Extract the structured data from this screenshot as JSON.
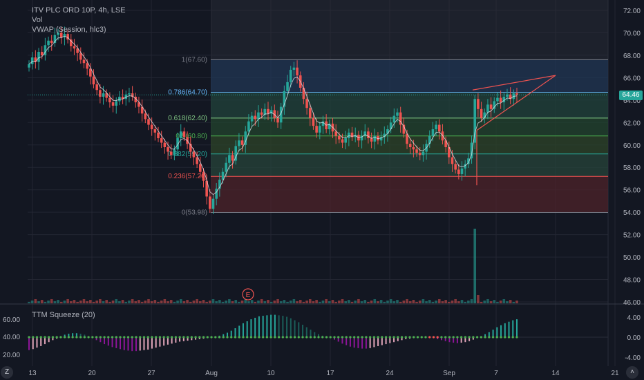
{
  "header": {
    "symbol_line": "ITV PLC ORD 10P, 4h, LSE",
    "volume_label": "Vol",
    "vwap_label": "VWAP (Session, hlc3)",
    "squeeze_label": "TTM Squeeze (20)",
    "current_price": "64.46",
    "earnings_marker": "E"
  },
  "controls": {
    "zoom_button": "Z",
    "chevron_glyph": "˄"
  },
  "colors": {
    "background": "#131722",
    "up": "#26a69a",
    "down": "#ef5350",
    "grid": "#232632",
    "axis_text": "#b2b5be",
    "squeeze_dark_magenta": "#8e1599",
    "squeeze_light_pink": "#e0a4b8",
    "squeeze_teal": "#26a69a",
    "fib_line": "#ef5350",
    "pattern_line": "#ef5350"
  },
  "chart_data": [
    {
      "type": "candlestick",
      "title": "ITV PLC ORD 10P, 4h, LSE",
      "x_ticks": [
        "13",
        "20",
        "27",
        "Aug",
        "10",
        "17",
        "24",
        "Sep",
        "7",
        "14",
        "21"
      ],
      "y_ticks": [
        "72.00",
        "70.00",
        "68.00",
        "66.00",
        "64.00",
        "62.00",
        "60.00",
        "58.00",
        "56.00",
        "54.00",
        "52.00",
        "50.00",
        "48.00",
        "46.00"
      ],
      "ylim": [
        46,
        73
      ],
      "last_price": 64.46,
      "fibonacci": {
        "levels": [
          {
            "label": "1(67.60)",
            "ratio": 1,
            "price": 67.6,
            "color": "#787b86"
          },
          {
            "label": "0.786(64.70)",
            "ratio": 0.786,
            "price": 64.7,
            "color": "#64b5f6"
          },
          {
            "label": "0.618(62.40)",
            "ratio": 0.618,
            "price": 62.4,
            "color": "#81c784"
          },
          {
            "label": "0.5(60.80)",
            "ratio": 0.5,
            "price": 60.8,
            "color": "#4caf50"
          },
          {
            "label": "0.382(59.20)",
            "ratio": 0.382,
            "price": 59.2,
            "color": "#26a69a"
          },
          {
            "label": "0.236(57.20)",
            "ratio": 0.236,
            "price": 57.2,
            "color": "#ef5350"
          },
          {
            "label": "0(53.98)",
            "ratio": 0,
            "price": 53.98,
            "color": "#787b86"
          }
        ]
      },
      "closes": [
        67.2,
        67.8,
        67.4,
        68.3,
        68.0,
        68.9,
        69.3,
        69.1,
        69.8,
        70.0,
        69.6,
        69.9,
        69.4,
        68.8,
        68.6,
        68.2,
        67.6,
        67.3,
        66.8,
        66.1,
        65.4,
        64.9,
        64.3,
        64.6,
        64.2,
        63.8,
        63.5,
        63.9,
        64.3,
        64.1,
        64.5,
        64.6,
        64.3,
        63.8,
        63.4,
        62.8,
        62.3,
        61.8,
        61.4,
        61.1,
        60.6,
        60.2,
        59.8,
        59.4,
        59.1,
        59.6,
        60.6,
        61.2,
        60.7,
        60.1,
        59.4,
        58.9,
        58.3,
        57.6,
        56.8,
        55.4,
        54.3,
        55.2,
        56.1,
        56.9,
        57.6,
        58.4,
        59.1,
        58.6,
        59.9,
        60.4,
        60.0,
        61.2,
        62.1,
        62.6,
        62.3,
        62.9,
        62.7,
        63.2,
        62.8,
        63.1,
        62.4,
        62.0,
        63.4,
        64.8,
        65.6,
        66.7,
        66.9,
        66.2,
        65.1,
        64.1,
        63.3,
        62.4,
        61.7,
        61.1,
        61.7,
        62.1,
        61.4,
        61.9,
        61.2,
        60.8,
        60.5,
        60.2,
        60.6,
        61.1,
        60.7,
        60.9,
        60.4,
        60.8,
        61.2,
        60.6,
        60.3,
        60.8,
        60.4,
        60.7,
        61.0,
        61.4,
        62.0,
        62.6,
        62.9,
        61.8,
        61.0,
        60.1,
        59.8,
        59.6,
        59.3,
        59.1,
        59.4,
        60.1,
        60.8,
        61.4,
        61.8,
        61.2,
        60.4,
        59.8,
        58.9,
        58.3,
        57.8,
        57.4,
        57.9,
        58.3,
        58.8,
        60.2,
        64.1,
        63.2,
        62.4,
        62.9,
        63.6,
        63.2,
        63.9,
        64.2,
        63.8,
        64.3,
        64.5,
        64.1,
        64.6,
        64.46
      ],
      "opens": [
        66.9,
        67.2,
        67.8,
        67.4,
        68.3,
        68.0,
        68.9,
        69.3,
        69.1,
        69.8,
        70.0,
        69.6,
        69.9,
        69.4,
        68.8,
        68.6,
        68.2,
        67.6,
        67.3,
        66.8,
        66.1,
        65.4,
        64.9,
        64.3,
        64.6,
        64.2,
        63.8,
        63.5,
        63.9,
        64.3,
        64.1,
        64.5,
        64.6,
        64.3,
        63.8,
        63.4,
        62.8,
        62.3,
        61.8,
        61.4,
        61.1,
        60.6,
        60.2,
        59.8,
        59.4,
        59.1,
        59.6,
        60.6,
        61.2,
        60.7,
        60.1,
        59.4,
        58.9,
        58.3,
        57.6,
        56.8,
        55.4,
        54.3,
        55.2,
        56.1,
        56.9,
        57.6,
        58.4,
        59.1,
        58.6,
        59.9,
        60.4,
        60.0,
        61.2,
        62.1,
        62.6,
        62.3,
        62.9,
        62.7,
        63.2,
        62.8,
        63.1,
        62.4,
        62.0,
        63.4,
        64.8,
        65.6,
        66.7,
        66.9,
        66.2,
        65.1,
        64.1,
        63.3,
        62.4,
        61.7,
        61.1,
        61.7,
        62.1,
        61.4,
        61.9,
        61.2,
        60.8,
        60.5,
        60.2,
        60.6,
        61.1,
        60.7,
        60.9,
        60.4,
        60.8,
        61.2,
        60.6,
        60.3,
        60.8,
        60.4,
        60.7,
        61.0,
        61.4,
        62.0,
        62.6,
        62.9,
        61.8,
        61.0,
        60.1,
        59.8,
        59.6,
        59.3,
        59.1,
        59.4,
        60.1,
        60.8,
        61.4,
        61.8,
        61.2,
        60.4,
        59.8,
        58.9,
        58.3,
        57.8,
        57.4,
        57.9,
        58.3,
        58.8,
        60.2,
        64.1,
        63.2,
        62.4,
        62.9,
        63.6,
        63.2,
        63.9,
        64.2,
        63.8,
        64.3,
        64.5,
        64.1,
        64.6
      ],
      "x_label": "",
      "y_label": ""
    },
    {
      "type": "bar",
      "title": "TTM Squeeze (20)",
      "y_ticks": [
        "60.00",
        "40.00",
        "20.00"
      ],
      "right_ticks": [
        "4.00",
        "0.00",
        "-4.00"
      ],
      "ylim": [
        -4.5,
        4.5
      ],
      "values": [
        -2.6,
        -2.4,
        -2.1,
        -1.8,
        -1.4,
        -1.0,
        -0.6,
        -0.3,
        0.2,
        0.5,
        0.7,
        0.8,
        0.8,
        0.7,
        0.5,
        0.2,
        -0.2,
        -0.6,
        -1.0,
        -1.4,
        -1.7,
        -2.0,
        -2.2,
        -2.4,
        -2.6,
        -2.7,
        -2.8,
        -2.8,
        -2.7,
        -2.6,
        -2.5,
        -2.3,
        -2.1,
        -1.9,
        -1.7,
        -1.5,
        -1.3,
        -1.1,
        -0.9,
        -0.8,
        -0.7,
        -0.6,
        -0.5,
        -0.4,
        -0.3,
        -0.2,
        -0.1,
        0.0,
        0.3,
        0.6,
        0.9,
        1.3,
        1.8,
        2.3,
        2.8,
        3.2,
        3.6,
        3.9,
        4.2,
        4.3,
        4.4,
        4.5,
        4.5,
        4.4,
        4.3,
        4.1,
        3.8,
        3.4,
        3.0,
        2.5,
        2.0,
        1.5,
        1.0,
        0.6,
        0.3,
        0.1,
        -0.2,
        -0.5,
        -0.9,
        -1.3,
        -1.6,
        -1.9,
        -2.1,
        -2.2,
        -2.3,
        -2.3,
        -2.2,
        -2.0,
        -1.8,
        -1.6,
        -1.4,
        -1.2,
        -1.0,
        -0.8,
        -0.6,
        -0.4,
        -0.3,
        -0.1,
        0.0,
        0.1,
        0.1,
        0.0,
        -0.2,
        -0.4,
        -0.6,
        -0.8,
        -1.0,
        -1.1,
        -1.2,
        -1.1,
        -1.0,
        -0.8,
        -0.5,
        -0.2,
        0.2,
        0.6,
        1.0,
        1.5,
        2.0,
        2.4,
        2.8,
        3.1,
        3.4,
        3.6
      ],
      "x_label": "",
      "y_label": ""
    }
  ]
}
